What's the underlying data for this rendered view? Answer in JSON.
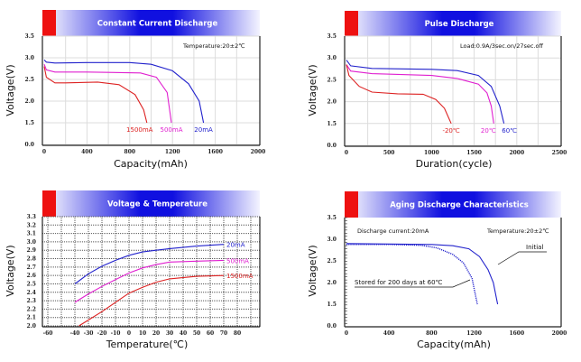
{
  "chart_data": [
    {
      "type": "line",
      "title": "Constant Current Discharge",
      "xlabel": "Capacity(mAh)",
      "ylabel": "Voltage(V)",
      "xlim": [
        0,
        2000
      ],
      "xticks": [
        0,
        400,
        800,
        1200,
        1600,
        2000
      ],
      "yticks": [
        0.0,
        1.5,
        2.0,
        2.5,
        3.0,
        3.5
      ],
      "ytick_labels": [
        "0.0",
        "1.5",
        "2.0",
        "2.5",
        "3.0",
        "3.5"
      ],
      "grid": true,
      "notes": [
        "Temperature:20±2℃"
      ],
      "series": [
        {
          "name": "20mA",
          "color": "#2222cc",
          "points": [
            [
              0,
              2.95
            ],
            [
              20,
              2.9
            ],
            [
              100,
              2.88
            ],
            [
              400,
              2.89
            ],
            [
              800,
              2.89
            ],
            [
              1000,
              2.85
            ],
            [
              1200,
              2.7
            ],
            [
              1350,
              2.4
            ],
            [
              1450,
              2.0
            ],
            [
              1490,
              1.5
            ]
          ]
        },
        {
          "name": "500mA",
          "color": "#e020d0",
          "points": [
            [
              0,
              2.85
            ],
            [
              20,
              2.72
            ],
            [
              100,
              2.67
            ],
            [
              400,
              2.67
            ],
            [
              900,
              2.65
            ],
            [
              1050,
              2.55
            ],
            [
              1150,
              2.2
            ],
            [
              1190,
              1.5
            ]
          ]
        },
        {
          "name": "1500mA",
          "color": "#dd2222",
          "points": [
            [
              0,
              2.8
            ],
            [
              20,
              2.55
            ],
            [
              100,
              2.42
            ],
            [
              200,
              2.42
            ],
            [
              500,
              2.44
            ],
            [
              700,
              2.38
            ],
            [
              850,
              2.15
            ],
            [
              930,
              1.8
            ],
            [
              960,
              1.5
            ]
          ]
        }
      ]
    },
    {
      "type": "line",
      "title": "Pulse Discharge",
      "xlabel": "Duration(cycle)",
      "ylabel": "Voltage(V)",
      "xlim": [
        0,
        2500
      ],
      "xticks": [
        0,
        500,
        1000,
        1500,
        2000,
        2500
      ],
      "yticks": [
        0.0,
        1.5,
        2.0,
        2.5,
        3.0,
        3.5
      ],
      "ytick_labels": [
        "0.0",
        "1.5",
        "2.0",
        "2.5",
        "3.0",
        "3.5"
      ],
      "grid": true,
      "notes": [
        "Load:0.9A/3sec.on/27sec.off"
      ],
      "series": [
        {
          "name": "60℃",
          "color": "#2222cc",
          "points": [
            [
              0,
              2.95
            ],
            [
              50,
              2.82
            ],
            [
              300,
              2.76
            ],
            [
              1000,
              2.74
            ],
            [
              1300,
              2.71
            ],
            [
              1550,
              2.6
            ],
            [
              1700,
              2.35
            ],
            [
              1800,
              1.9
            ],
            [
              1850,
              1.5
            ]
          ]
        },
        {
          "name": "20℃",
          "color": "#e020d0",
          "points": [
            [
              0,
              2.85
            ],
            [
              50,
              2.7
            ],
            [
              300,
              2.64
            ],
            [
              1000,
              2.6
            ],
            [
              1300,
              2.53
            ],
            [
              1550,
              2.4
            ],
            [
              1650,
              2.2
            ],
            [
              1700,
              1.9
            ],
            [
              1730,
              1.5
            ]
          ]
        },
        {
          "name": "-20℃",
          "color": "#dd2222",
          "points": [
            [
              0,
              2.85
            ],
            [
              30,
              2.6
            ],
            [
              150,
              2.35
            ],
            [
              300,
              2.22
            ],
            [
              600,
              2.18
            ],
            [
              900,
              2.17
            ],
            [
              1050,
              2.05
            ],
            [
              1150,
              1.85
            ],
            [
              1230,
              1.5
            ]
          ]
        }
      ]
    },
    {
      "type": "line",
      "title": "Voltage & Temperature",
      "xlabel": "Temperature(℃)",
      "ylabel": "Voltage(V)",
      "xlim": [
        -64,
        96
      ],
      "xticks": [
        -60,
        -40,
        -30,
        -20,
        -10,
        0,
        10,
        20,
        30,
        40,
        50,
        60,
        70,
        80
      ],
      "yticks": [
        2.0,
        2.1,
        2.2,
        2.3,
        2.4,
        2.5,
        2.6,
        2.7,
        2.8,
        2.9,
        3.0,
        3.1,
        3.2,
        3.3
      ],
      "ytick_labels": [
        "2.0",
        "2.1",
        "2.2",
        "2.3",
        "2.4",
        "2.5",
        "2.6",
        "2.7",
        "2.8",
        "2.9",
        "3.0",
        "3.1",
        "3.2",
        "3.3"
      ],
      "grid": true,
      "notes": [],
      "series": [
        {
          "name": "20mA",
          "color": "#2222cc",
          "points": [
            [
              -40,
              2.5
            ],
            [
              -30,
              2.62
            ],
            [
              -20,
              2.71
            ],
            [
              -10,
              2.78
            ],
            [
              0,
              2.84
            ],
            [
              10,
              2.88
            ],
            [
              20,
              2.9
            ],
            [
              30,
              2.92
            ],
            [
              50,
              2.95
            ],
            [
              70,
              2.97
            ]
          ]
        },
        {
          "name": "500mA",
          "color": "#e020d0",
          "points": [
            [
              -40,
              2.28
            ],
            [
              -30,
              2.38
            ],
            [
              -20,
              2.47
            ],
            [
              -10,
              2.55
            ],
            [
              0,
              2.63
            ],
            [
              10,
              2.69
            ],
            [
              20,
              2.73
            ],
            [
              30,
              2.76
            ],
            [
              50,
              2.77
            ],
            [
              70,
              2.78
            ]
          ]
        },
        {
          "name": "1500mA",
          "color": "#dd2222",
          "points": [
            [
              -37,
              2.0
            ],
            [
              -30,
              2.07
            ],
            [
              -20,
              2.17
            ],
            [
              -10,
              2.28
            ],
            [
              0,
              2.39
            ],
            [
              10,
              2.46
            ],
            [
              20,
              2.52
            ],
            [
              30,
              2.56
            ],
            [
              50,
              2.59
            ],
            [
              70,
              2.6
            ]
          ]
        }
      ]
    },
    {
      "type": "line",
      "title": "Aging Discharge Characteristics",
      "xlabel": "Capacity(mAh)",
      "ylabel": "Voltage(V)",
      "xlim": [
        0,
        2000
      ],
      "xticks": [
        0,
        400,
        800,
        1200,
        1600,
        2000
      ],
      "yticks": [
        0.0,
        1.5,
        2.0,
        2.5,
        3.0,
        3.5
      ],
      "ytick_labels": [
        "0.0",
        "1.5",
        "2.0",
        "2.5",
        "3.0",
        "3.5"
      ],
      "grid": false,
      "notes": [
        "Discharge current:20mA",
        "Temperature:20±2℃"
      ],
      "series": [
        {
          "name": "Initial",
          "color": "#2222cc",
          "dashed": false,
          "points": [
            [
              0,
              2.9
            ],
            [
              400,
              2.89
            ],
            [
              800,
              2.88
            ],
            [
              1000,
              2.85
            ],
            [
              1150,
              2.78
            ],
            [
              1250,
              2.6
            ],
            [
              1330,
              2.3
            ],
            [
              1380,
              2.0
            ],
            [
              1420,
              1.5
            ]
          ]
        },
        {
          "name": "Stored for 200 days at 60℃",
          "color": "#2222cc",
          "dashed": true,
          "points": [
            [
              0,
              2.88
            ],
            [
              400,
              2.88
            ],
            [
              700,
              2.86
            ],
            [
              850,
              2.8
            ],
            [
              1000,
              2.65
            ],
            [
              1100,
              2.45
            ],
            [
              1180,
              2.1
            ],
            [
              1230,
              1.5
            ]
          ]
        }
      ]
    }
  ],
  "colors": {
    "header_blue": "#1010e0",
    "header_red": "#ee1111"
  }
}
